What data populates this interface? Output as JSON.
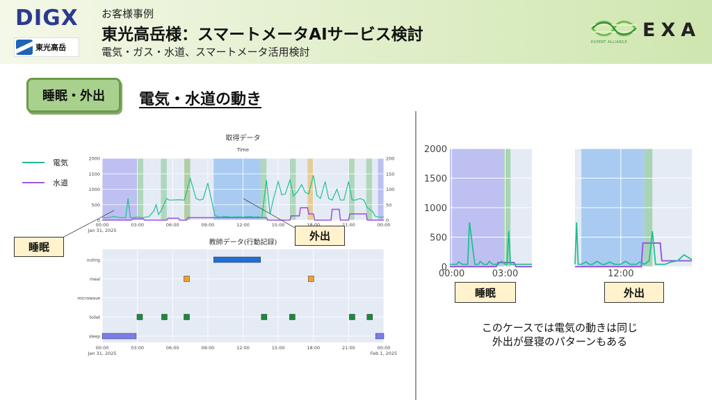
{
  "header": {
    "logo_left": "DIGX",
    "company_logo_text": "東光高岳",
    "subtitle_top": "お客様事例",
    "title": "東光高岳様：スマートメータAIサービス検討",
    "subtitle_bottom": "電気・ガス・水道、スマートメータ活用検討",
    "logo_right": "EXA",
    "logo_right_caption": "EXPERT ALLIANCE"
  },
  "section": {
    "tag": "睡眠・外出",
    "title": "電気・水道の動き"
  },
  "annotations": {
    "sleep_label": "睡眠",
    "out_label": "外出",
    "zoom_sleep_label": "睡眠",
    "zoom_out_label": "外出"
  },
  "caption": {
    "line1": "このケースでは電気の動きは同じ",
    "line2": "外出が昼寝のパターンもある"
  },
  "colors": {
    "electric": "#1fbf92",
    "water": "#9b59d9",
    "sleep_band": "#b7b8f0",
    "out_band": "#9fc6f0",
    "toilet_band": "#9dd0a8",
    "meal_band": "#e6c27a",
    "plot_bg": "#e5ebf5",
    "sleep_bar": "#7b7ee8",
    "outing_bar": "#1f6fd6",
    "meal_marker": "#f0a030",
    "toilet_marker": "#1a8a3a"
  },
  "chart_data": [
    {
      "type": "line",
      "title": "取得データ",
      "xlabel": "Time",
      "x_ticks": [
        "00:00",
        "03:00",
        "06:00",
        "09:00",
        "12:00",
        "15:00",
        "18:00",
        "21:00",
        "00:00"
      ],
      "x_date_label": "Jan 31, 2025",
      "x_range_hours": [
        0,
        24
      ],
      "ylim_left": [
        0,
        2000
      ],
      "ylim_right": [
        0,
        200
      ],
      "y_ticks_left": [
        "0",
        "500",
        "1000",
        "1500",
        "2000"
      ],
      "y_ticks_right": [
        "0",
        "50",
        "100",
        "150",
        "200"
      ],
      "legend": [
        "電気",
        "水道"
      ],
      "legend_placement": "outside-left",
      "bands": [
        {
          "kind": "sleep",
          "start": 0,
          "end": 3.0
        },
        {
          "kind": "toilet",
          "start": 3.0,
          "end": 3.5
        },
        {
          "kind": "toilet",
          "start": 5.0,
          "end": 5.5
        },
        {
          "kind": "meal",
          "start": 7.0,
          "end": 7.5
        },
        {
          "kind": "toilet",
          "start": 7.0,
          "end": 7.5
        },
        {
          "kind": "outing",
          "start": 9.5,
          "end": 13.5
        },
        {
          "kind": "toilet",
          "start": 13.5,
          "end": 14.0
        },
        {
          "kind": "toilet",
          "start": 16.0,
          "end": 16.5
        },
        {
          "kind": "meal",
          "start": 17.5,
          "end": 18.0
        },
        {
          "kind": "toilet",
          "start": 21.0,
          "end": 21.5
        },
        {
          "kind": "toilet",
          "start": 22.5,
          "end": 23.0
        },
        {
          "kind": "sleep",
          "start": 23.5,
          "end": 24
        }
      ],
      "series": [
        {
          "name": "電気",
          "axis": "left",
          "x": [
            0,
            0.5,
            1,
            1.5,
            2,
            2.2,
            2.4,
            2.6,
            3,
            3.5,
            4,
            4.4,
            4.6,
            4.8,
            5,
            5.5,
            5.7,
            6,
            6.5,
            7,
            7.5,
            8,
            8.3,
            8.6,
            9,
            9.3,
            9.6,
            10,
            10.5,
            11,
            11.5,
            12,
            12.5,
            13,
            13.3,
            13.6,
            14,
            14.3,
            14.6,
            15,
            15.3,
            15.6,
            16,
            16.3,
            16.6,
            17,
            17.3,
            17.6,
            18,
            18.3,
            18.6,
            19,
            19.3,
            19.6,
            20,
            20.3,
            20.6,
            21,
            21.3,
            21.6,
            22,
            22.3,
            22.6,
            23,
            23.3,
            23.6,
            24
          ],
          "y": [
            80,
            80,
            120,
            80,
            80,
            700,
            80,
            80,
            100,
            80,
            120,
            300,
            500,
            180,
            300,
            700,
            650,
            650,
            660,
            650,
            1350,
            700,
            650,
            680,
            1200,
            680,
            150,
            100,
            120,
            100,
            110,
            100,
            120,
            100,
            110,
            80,
            1300,
            200,
            700,
            1250,
            820,
            850,
            1300,
            780,
            900,
            1150,
            900,
            850,
            1450,
            800,
            700,
            1250,
            700,
            650,
            1000,
            650,
            650,
            1250,
            650,
            650,
            700,
            650,
            400,
            300,
            120,
            100,
            100
          ]
        },
        {
          "name": "水道",
          "axis": "right",
          "x": [
            0,
            2.5,
            2.6,
            3.5,
            3.6,
            5.5,
            5.6,
            6.5,
            6.6,
            7.2,
            7.3,
            14,
            14.1,
            16,
            16.1,
            16.8,
            16.9,
            17.5,
            17.6,
            18,
            18.1,
            19.5,
            19.6,
            20.2,
            20.3,
            21,
            21.1,
            22.5,
            22.6,
            24
          ],
          "y": [
            0,
            0,
            4,
            4,
            0,
            0,
            6,
            6,
            0,
            0,
            8,
            8,
            0,
            0,
            14,
            14,
            40,
            40,
            20,
            20,
            0,
            0,
            35,
            35,
            0,
            0,
            20,
            20,
            0,
            0
          ]
        }
      ]
    },
    {
      "type": "scatter",
      "title": "教師データ(行動記録)",
      "categories": [
        "outing",
        "meal",
        "microwave",
        "toilet",
        "sleep"
      ],
      "x_ticks": [
        "00:00",
        "03:00",
        "06:00",
        "09:00",
        "12:00",
        "15:00",
        "18:00",
        "21:00",
        "00:00"
      ],
      "x_date_label_start": "Jan 31, 2025",
      "x_date_label_end": "Feb 1, 2025",
      "x_range_hours": [
        0,
        24
      ],
      "ranges": [
        {
          "category": "outing",
          "start": 9.5,
          "end": 13.5
        },
        {
          "category": "sleep",
          "start": 0,
          "end": 2.9
        },
        {
          "category": "sleep",
          "start": 23.3,
          "end": 24
        }
      ],
      "points": [
        {
          "category": "meal",
          "x": 7.2
        },
        {
          "category": "meal",
          "x": 17.8
        },
        {
          "category": "toilet",
          "x": 3.2
        },
        {
          "category": "toilet",
          "x": 5.3
        },
        {
          "category": "toilet",
          "x": 7.2
        },
        {
          "category": "toilet",
          "x": 13.8
        },
        {
          "category": "toilet",
          "x": 16.2
        },
        {
          "category": "toilet",
          "x": 21.3
        },
        {
          "category": "toilet",
          "x": 22.8
        }
      ]
    },
    {
      "type": "line",
      "title": "",
      "x_ticks": [
        "00:00",
        "03:00"
      ],
      "x_range_hours": [
        -0.1,
        4.5
      ],
      "ylim": [
        0,
        2000
      ],
      "y_ticks": [
        "0",
        "500",
        "1000",
        "1500",
        "2000"
      ],
      "bands": [
        {
          "kind": "sleep",
          "start": -0.1,
          "end": 2.9
        },
        {
          "kind": "toilet",
          "start": 2.9,
          "end": 3.3
        }
      ],
      "series": [
        {
          "name": "電気",
          "x": [
            -0.1,
            0.3,
            0.4,
            0.6,
            0.9,
            1,
            1.3,
            1.5,
            1.6,
            1.8,
            2.0,
            2.1,
            2.3,
            2.6,
            2.8,
            3.0,
            3.1,
            3.2,
            3.3,
            3.6,
            4.5
          ],
          "y": [
            40,
            40,
            80,
            40,
            40,
            750,
            40,
            40,
            90,
            40,
            40,
            90,
            40,
            40,
            90,
            40,
            40,
            600,
            40,
            40,
            40
          ]
        },
        {
          "name": "水道",
          "x": [
            -0.1,
            2.5,
            2.6,
            3.5,
            3.6,
            4.5
          ],
          "y": [
            0,
            0,
            70,
            70,
            0,
            0
          ]
        }
      ]
    },
    {
      "type": "line",
      "title": "",
      "x_ticks": [
        "12:00"
      ],
      "x_range_hours": [
        9.1,
        16.5
      ],
      "ylim": [
        0,
        2000
      ],
      "bands": [
        {
          "kind": "outing",
          "start": 9.5,
          "end": 13.5
        },
        {
          "kind": "toilet",
          "start": 13.5,
          "end": 14.0
        }
      ],
      "series": [
        {
          "name": "電気",
          "x": [
            9.1,
            9.2,
            9.3,
            9.5,
            9.8,
            10.0,
            10.2,
            10.5,
            10.8,
            11.0,
            11.3,
            11.6,
            12.0,
            12.3,
            12.6,
            13.0,
            13.2,
            13.5,
            13.8,
            14.0,
            14.2,
            14.4,
            14.8,
            15.2,
            15.6,
            16.0,
            16.5
          ],
          "y": [
            40,
            750,
            40,
            40,
            80,
            40,
            40,
            90,
            40,
            40,
            80,
            40,
            40,
            90,
            40,
            40,
            80,
            40,
            100,
            600,
            40,
            40,
            40,
            80,
            100,
            200,
            120
          ]
        },
        {
          "name": "水道",
          "x": [
            9.1,
            13.3,
            13.4,
            14.5,
            14.6,
            16.5
          ],
          "y": [
            0,
            0,
            400,
            400,
            100,
            100
          ]
        }
      ]
    }
  ]
}
